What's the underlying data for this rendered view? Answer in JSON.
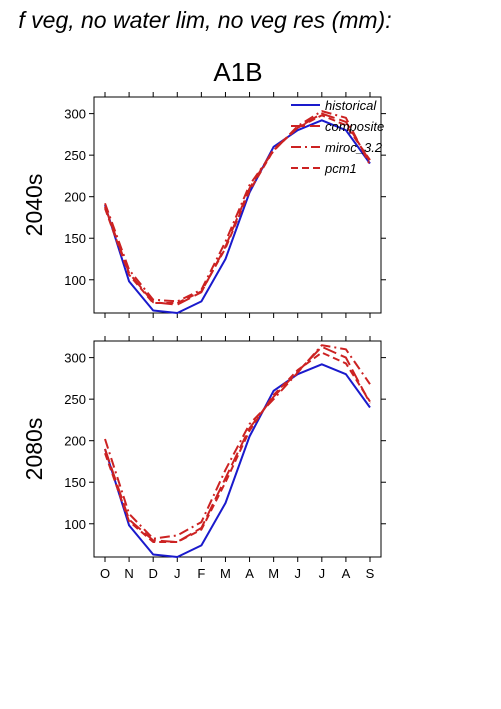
{
  "header": {
    "title": "f veg, no water lim, no veg res (mm):",
    "scenario": "A1B"
  },
  "chart_data": [
    {
      "type": "line",
      "row_label": "2040s",
      "categories": [
        "O",
        "N",
        "D",
        "J",
        "F",
        "M",
        "A",
        "M",
        "J",
        "J",
        "A",
        "S"
      ],
      "ylim": [
        60,
        320
      ],
      "yticks": [
        100,
        150,
        200,
        250,
        300
      ],
      "legend": {
        "placement": "top-right"
      },
      "series": [
        {
          "name": "historical",
          "color": "#1a1acc",
          "style": "solid",
          "values": [
            190,
            98,
            63,
            60,
            74,
            125,
            205,
            260,
            280,
            292,
            280,
            240
          ]
        },
        {
          "name": "composite",
          "color": "#cc2222",
          "style": "longdash",
          "values": [
            188,
            108,
            73,
            70,
            85,
            140,
            210,
            257,
            283,
            300,
            290,
            242
          ]
        },
        {
          "name": "miroc_3.2",
          "color": "#cc2222",
          "style": "dashdot",
          "values": [
            192,
            112,
            76,
            74,
            88,
            146,
            214,
            255,
            285,
            303,
            295,
            238
          ]
        },
        {
          "name": "pcm1",
          "color": "#cc2222",
          "style": "dash",
          "values": [
            186,
            106,
            72,
            72,
            86,
            138,
            207,
            256,
            283,
            298,
            286,
            244
          ]
        }
      ]
    },
    {
      "type": "line",
      "row_label": "2080s",
      "categories": [
        "O",
        "N",
        "D",
        "J",
        "F",
        "M",
        "A",
        "M",
        "J",
        "J",
        "A",
        "S"
      ],
      "ylim": [
        60,
        320
      ],
      "yticks": [
        100,
        150,
        200,
        250,
        300
      ],
      "series": [
        {
          "name": "historical",
          "color": "#1a1acc",
          "style": "solid",
          "values": [
            190,
            98,
            63,
            60,
            74,
            125,
            205,
            260,
            280,
            292,
            280,
            240
          ]
        },
        {
          "name": "composite",
          "color": "#cc2222",
          "style": "longdash",
          "values": [
            190,
            105,
            80,
            78,
            95,
            155,
            215,
            253,
            283,
            313,
            300,
            245
          ]
        },
        {
          "name": "miroc_3.2",
          "color": "#cc2222",
          "style": "dashdot",
          "values": [
            202,
            112,
            82,
            86,
            102,
            165,
            220,
            250,
            282,
            315,
            310,
            268
          ]
        },
        {
          "name": "pcm1",
          "color": "#cc2222",
          "style": "dash",
          "values": [
            185,
            103,
            78,
            78,
            93,
            150,
            212,
            255,
            285,
            306,
            293,
            247
          ]
        }
      ]
    }
  ]
}
